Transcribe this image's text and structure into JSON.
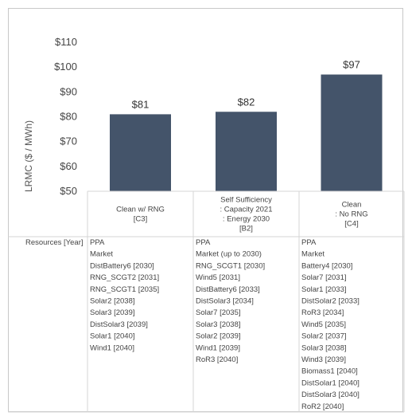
{
  "chart_data": {
    "type": "bar",
    "title": "",
    "xlabel": "",
    "ylabel": "LRMC ($ / MWh)",
    "ylim": [
      50,
      110
    ],
    "y_ticks": [
      "$50",
      "$60",
      "$70",
      "$80",
      "$90",
      "$100",
      "$110"
    ],
    "grid": false,
    "bar_color": "#44546a",
    "categories": [
      [
        "Clean w/ RNG",
        "[C3]"
      ],
      [
        "Self Sufficiency",
        ": Capacity 2021",
        ": Energy 2030",
        "[B2]"
      ],
      [
        "Clean",
        ": No RNG",
        "[C4]"
      ]
    ],
    "values": [
      81,
      82,
      97
    ],
    "data_labels": [
      "$81",
      "$82",
      "$97"
    ],
    "resources_header": "Resources [Year]",
    "resources": [
      [
        "PPA",
        "Market",
        "DistBattery6 [2030]",
        "RNG_SCGT2 [2031]",
        "RNG_SCGT1 [2035]",
        "Solar2 [2038]",
        "Solar3 [2039]",
        "DistSolar3 [2039]",
        "Solar1 [2040]",
        "Wind1 [2040]"
      ],
      [
        "PPA",
        "Market (up to 2030)",
        "RNG_SCGT1 [2030]",
        "Wind5 [2031]",
        "DistBattery6 [2033]",
        "DistSolar3 [2034]",
        "Solar7 [2035]",
        "Solar3 [2038]",
        "Solar2 [2039]",
        "Wind1 [2039]",
        "RoR3 [2040]"
      ],
      [
        "PPA",
        "Market",
        "Battery4 [2030]",
        "Solar7 [2031]",
        "Solar1 [2033]",
        "DistSolar2 [2033]",
        "RoR3 [2034]",
        "Wind5 [2035]",
        "Solar2 [2037]",
        "Solar3 [2038]",
        "Wind3 [2039]",
        "Biomass1 [2040]",
        "DistSolar1 [2040]",
        "DistSolar3 [2040]",
        "RoR2 [2040]"
      ]
    ]
  }
}
